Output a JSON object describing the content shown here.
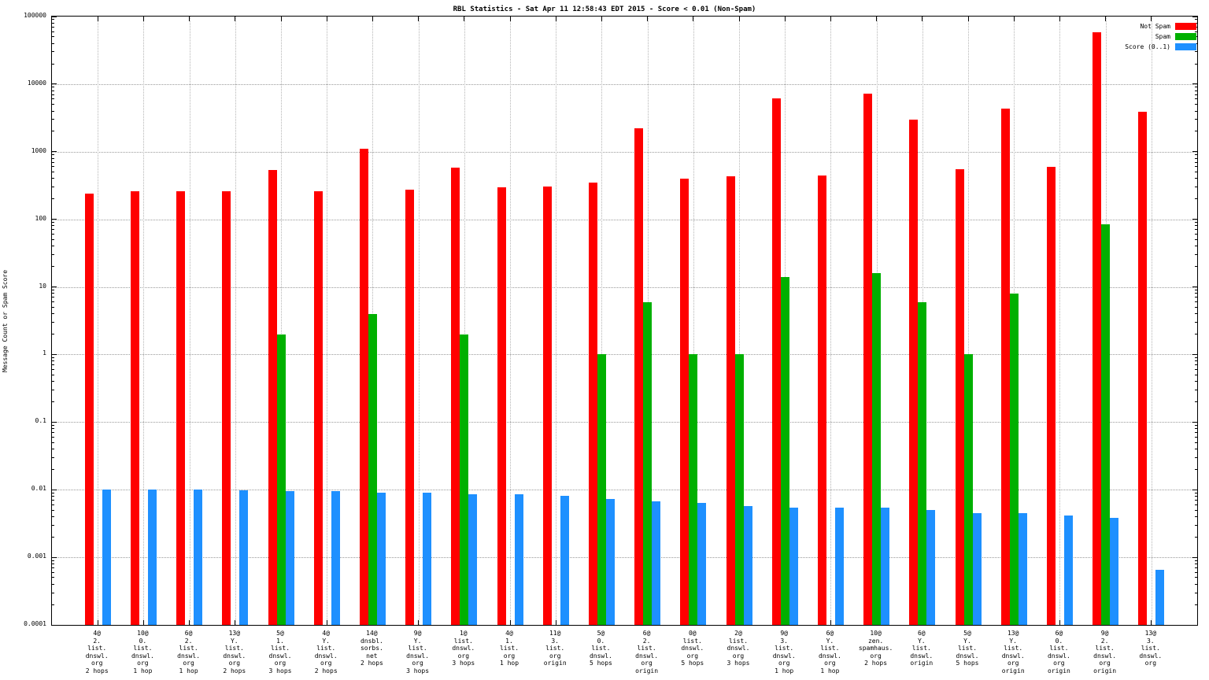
{
  "chart_data": {
    "type": "bar",
    "title": "RBL Statistics - Sat Apr 11 12:58:43 EDT 2015 - Score < 0.01 (Non-Spam)",
    "ylabel": "Message Count or Spam Score",
    "xlabel": "",
    "y_scale": "log",
    "ylim": [
      0.0001,
      100000
    ],
    "ytick_labels": [
      "0.0001",
      "0.001",
      "0.01",
      "0.1",
      "1",
      "10",
      "100",
      "1000",
      "10000",
      "100000"
    ],
    "grid": "on",
    "legend_position": "top-right",
    "categories": [
      "4@\n2.\nlist.\ndnswl.\norg\n2 hops",
      "10@\n0.\nlist.\ndnswl.\norg\n1 hop",
      "6@\n2.\nlist.\ndnswl.\norg\n1 hop",
      "13@\nY.\nlist.\ndnswl.\norg\n2 hops",
      "5@\n1.\nlist.\ndnswl.\norg\n3 hops",
      "4@\nY.\nlist.\ndnswl.\norg\n2 hops",
      "14@\ndnsbl.\nsorbs.\nnet\n2 hops",
      "9@\nY.\nlist.\ndnswl.\norg\n3 hops",
      "1@\nlist.\ndnswl.\norg\n3 hops",
      "4@\n1.\nlist.\norg\n1 hop",
      "11@\n3.\nlist.\norg\norigin",
      "5@\n0.\nlist.\ndnswl.\n5 hops",
      "6@\n2.\nlist.\ndnswl.\norg\norigin",
      "0@\nlist.\ndnswl.\norg\n5 hops",
      "2@\nlist.\ndnswl.\norg\n3 hops",
      "9@\n3.\nlist.\ndnswl.\norg\n1 hop",
      "6@\nY.\nlist.\ndnswl.\norg\n1 hop",
      "10@\nzen.\nspamhaus.\norg\n2 hops",
      "6@\nY.\nlist.\ndnswl.\norigin",
      "5@\nY.\nlist.\ndnswl.\n5 hops",
      "13@\nY.\nlist.\ndnswl.\norg\norigin",
      "6@\n0.\nlist.\ndnswl.\norg\norigin",
      "9@\n2.\nlist.\ndnswl.\norg\norigin",
      "13@\n3.\nlist.\ndnswl.\norg"
    ],
    "series": [
      {
        "name": "Not Spam",
        "color": "#ff0000",
        "values": [
          240,
          260,
          260,
          260,
          530,
          260,
          1100,
          275,
          580,
          295,
          305,
          345,
          2200,
          395,
          430,
          6200,
          450,
          7300,
          3000,
          545,
          4400,
          590,
          58000,
          3900
        ]
      },
      {
        "name": "Spam",
        "color": "#00b000",
        "values": [
          null,
          null,
          null,
          null,
          2,
          null,
          4,
          null,
          2,
          null,
          null,
          1,
          6,
          1,
          1,
          14,
          null,
          16,
          6,
          1,
          8,
          null,
          85,
          null
        ]
      },
      {
        "name": "Score (0..1)",
        "color": "#1e90ff",
        "values": [
          0.01,
          0.01,
          0.01,
          0.0098,
          0.0095,
          0.0095,
          0.009,
          0.009,
          0.0086,
          0.0086,
          0.0082,
          0.0072,
          0.0068,
          0.0063,
          0.0058,
          0.0055,
          0.0055,
          0.0054,
          0.005,
          0.0045,
          0.0045,
          0.0042,
          0.0038,
          0.00065
        ]
      }
    ]
  }
}
